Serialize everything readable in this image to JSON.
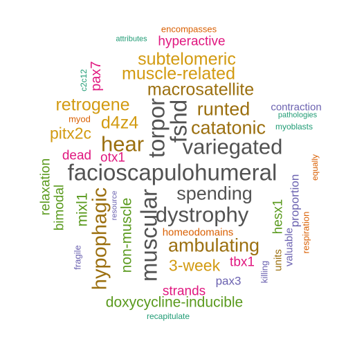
{
  "colors": {
    "dark_gray": "#525252",
    "mustard": "#d29a10",
    "bronze": "#9b6f0f",
    "green": "#5a9a1e",
    "magenta": "#e0177f",
    "purple": "#6b62b0",
    "teal": "#1f9b74",
    "orange": "#d95f02"
  },
  "words": {
    "encompasses": "encompasses",
    "attributes": "attributes",
    "hyperactive": "hyperactive",
    "subtelomeric": "subtelomeric",
    "c2c12": "c2c12",
    "pax7": "pax7",
    "muscle_related": "muscle-related",
    "macrosatellite": "macrosatellite",
    "retrogene": "retrogene",
    "runted": "runted",
    "contraction": "contraction",
    "pathologies": "pathologies",
    "myod": "myod",
    "d4z4": "d4z4",
    "torpor": "torpor",
    "fshd": "fshd",
    "catatonic": "catatonic",
    "myoblasts": "myoblasts",
    "pitx2c": "pitx2c",
    "hear": "hear",
    "variegated": "variegated",
    "dead": "dead",
    "otx1": "otx1",
    "equally": "equally",
    "relaxation": "relaxation",
    "facioscapulohumeral": "facioscapulohumeral",
    "bimodal": "bimodal",
    "mixl1": "mixl1",
    "spending": "spending",
    "muscular": "muscular",
    "resource": "resource",
    "hesx1": "hesx1",
    "proportion": "proportion",
    "dystrophy": "dystrophy",
    "hypophagic": "hypophagic",
    "non_muscle": "non-muscle",
    "respiration": "respiration",
    "homeodomains": "homeodomains",
    "fragile": "fragile",
    "ambulating": "ambulating",
    "valuable": "valuable",
    "units": "units",
    "three_week": "3-week",
    "tbx1": "tbx1",
    "killing": "killing",
    "pax3": "pax3",
    "strands": "strands",
    "doxycycline_inducible": "doxycycline-inducible",
    "recapitulate": "recapitulate"
  }
}
